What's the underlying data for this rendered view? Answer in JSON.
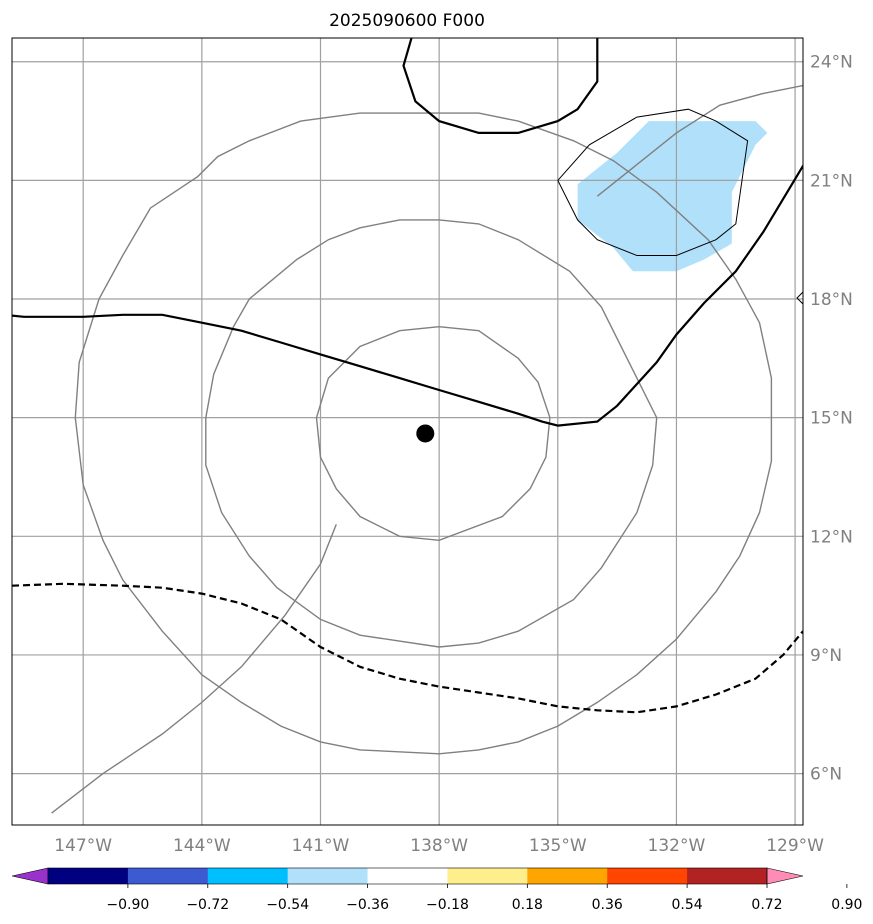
{
  "title": "2025090600 F000",
  "map": {
    "extent": {
      "lon_min": -148.8,
      "lon_max": -128.8,
      "lat_min": 4.7,
      "lat_max": 24.6
    },
    "gridlines": {
      "lon": [
        -147,
        -144,
        -141,
        -138,
        -135,
        -132,
        -129
      ],
      "lat": [
        6,
        9,
        12,
        15,
        18,
        21,
        24
      ],
      "color": "#a0a0a0"
    },
    "lon_labels": [
      "147°W",
      "144°W",
      "141°W",
      "138°W",
      "135°W",
      "132°W",
      "129°W"
    ],
    "lat_labels": [
      "6°N",
      "9°N",
      "12°N",
      "15°N",
      "18°N",
      "21°N",
      "24°N"
    ],
    "center_marker": {
      "lon": -138.35,
      "lat": 14.6,
      "color": "#000000"
    },
    "range_rings": {
      "color": "#808080",
      "rings": [
        [
          [
            -138,
            17.3
          ],
          [
            -137,
            17.2
          ],
          [
            -136,
            16.5
          ],
          [
            -135.5,
            15.9
          ],
          [
            -135.2,
            15
          ],
          [
            -135.3,
            14
          ],
          [
            -135.7,
            13.2
          ],
          [
            -136.4,
            12.5
          ],
          [
            -138,
            11.9
          ],
          [
            -139,
            12
          ],
          [
            -140,
            12.5
          ],
          [
            -140.6,
            13.2
          ],
          [
            -141,
            14
          ],
          [
            -141.1,
            15
          ],
          [
            -140.8,
            16
          ],
          [
            -140,
            16.8
          ],
          [
            -139,
            17.2
          ],
          [
            -138,
            17.3
          ]
        ],
        [
          [
            -138,
            20
          ],
          [
            -137,
            19.9
          ],
          [
            -136,
            19.5
          ],
          [
            -134.7,
            18.7
          ],
          [
            -133.9,
            17.8
          ],
          [
            -133.2,
            16.4
          ],
          [
            -132.5,
            15
          ],
          [
            -132.6,
            13.8
          ],
          [
            -133,
            12.6
          ],
          [
            -133.9,
            11.2
          ],
          [
            -134.6,
            10.4
          ],
          [
            -136,
            9.6
          ],
          [
            -137,
            9.3
          ],
          [
            -138,
            9.2
          ],
          [
            -140,
            9.5
          ],
          [
            -141,
            9.9
          ],
          [
            -142.1,
            10.7
          ],
          [
            -142.8,
            11.5
          ],
          [
            -143.5,
            12.6
          ],
          [
            -143.9,
            13.8
          ],
          [
            -143.9,
            15
          ],
          [
            -143.7,
            16.1
          ],
          [
            -143.2,
            17.3
          ],
          [
            -142.8,
            18
          ],
          [
            -141.6,
            19
          ],
          [
            -140.8,
            19.5
          ],
          [
            -140,
            19.8
          ],
          [
            -139,
            20
          ],
          [
            -138,
            20
          ]
        ],
        [
          [
            -138,
            22.7
          ],
          [
            -137,
            22.7
          ],
          [
            -136,
            22.5
          ],
          [
            -134.6,
            22
          ],
          [
            -133.6,
            21.5
          ],
          [
            -132.5,
            20.7
          ],
          [
            -131.2,
            19.5
          ],
          [
            -130.5,
            18.5
          ],
          [
            -129.9,
            17.4
          ],
          [
            -129.6,
            16
          ],
          [
            -129.6,
            13.9
          ],
          [
            -129.9,
            12.6
          ],
          [
            -130.4,
            11.5
          ],
          [
            -131,
            10.6
          ],
          [
            -132,
            9.4
          ],
          [
            -133,
            8.5
          ],
          [
            -134,
            7.8
          ],
          [
            -135,
            7.2
          ],
          [
            -136,
            6.8
          ],
          [
            -137,
            6.6
          ],
          [
            -138,
            6.5
          ],
          [
            -140,
            6.6
          ],
          [
            -141,
            6.8
          ],
          [
            -142,
            7.2
          ],
          [
            -143,
            7.8
          ],
          [
            -144,
            8.5
          ],
          [
            -145,
            9.6
          ],
          [
            -146,
            10.9
          ],
          [
            -146.5,
            11.9
          ],
          [
            -147,
            13.3
          ],
          [
            -147.2,
            15
          ],
          [
            -147.1,
            16.4
          ],
          [
            -146.6,
            18
          ],
          [
            -146,
            19.1
          ],
          [
            -145.3,
            20.3
          ],
          [
            -144.1,
            21.1
          ],
          [
            -143.6,
            21.6
          ],
          [
            -142.8,
            22
          ],
          [
            -141.5,
            22.5
          ],
          [
            -140,
            22.7
          ],
          [
            -139,
            22.7
          ],
          [
            -138,
            22.7
          ]
        ],
        [
          [
            -147.8,
            5
          ],
          [
            -146.5,
            6
          ],
          [
            -145,
            7
          ],
          [
            -144,
            7.8
          ],
          [
            -143,
            8.7
          ],
          [
            -141.9,
            10
          ],
          [
            -141,
            11.3
          ],
          [
            -140.6,
            12.3
          ]
        ],
        [
          [
            -128.8,
            23.4
          ],
          [
            -129.8,
            23.2
          ],
          [
            -130.9,
            22.9
          ],
          [
            -132,
            22.2
          ],
          [
            -133,
            21.4
          ],
          [
            -134,
            20.6
          ]
        ]
      ]
    },
    "contours": {
      "color": "#000000",
      "solid_main": [
        [
          -149,
          17.6
        ],
        [
          -148.5,
          17.55
        ],
        [
          -147,
          17.55
        ],
        [
          -146,
          17.6
        ],
        [
          -145,
          17.6
        ],
        [
          -144,
          17.4
        ],
        [
          -143,
          17.2
        ],
        [
          -142,
          16.9
        ],
        [
          -141,
          16.6
        ],
        [
          -140,
          16.3
        ],
        [
          -139,
          16
        ],
        [
          -138,
          15.7
        ],
        [
          -137,
          15.4
        ],
        [
          -136,
          15.1
        ],
        [
          -135.4,
          14.9
        ],
        [
          -135,
          14.8
        ],
        [
          -134,
          14.9
        ],
        [
          -133.5,
          15.3
        ],
        [
          -132.5,
          16.4
        ],
        [
          -132,
          17.1
        ],
        [
          -131.3,
          17.9
        ],
        [
          -130.5,
          18.7
        ],
        [
          -129.8,
          19.7
        ],
        [
          -129.2,
          20.7
        ],
        [
          -128.6,
          21.7
        ]
      ],
      "solid_north": [
        [
          -138.7,
          24.6
        ],
        [
          -138.9,
          23.9
        ],
        [
          -138.6,
          23
        ],
        [
          -138,
          22.5
        ],
        [
          -137,
          22.2
        ],
        [
          -136,
          22.2
        ],
        [
          -135,
          22.5
        ],
        [
          -134.5,
          22.8
        ],
        [
          -134,
          23.5
        ],
        [
          -134,
          24.6
        ]
      ],
      "dashed_south": [
        [
          -148.8,
          10.75
        ],
        [
          -147.5,
          10.8
        ],
        [
          -146,
          10.75
        ],
        [
          -145,
          10.7
        ],
        [
          -144,
          10.55
        ],
        [
          -143,
          10.3
        ],
        [
          -142,
          9.9
        ],
        [
          -141,
          9.2
        ],
        [
          -140,
          8.7
        ],
        [
          -139,
          8.4
        ],
        [
          -138,
          8.2
        ],
        [
          -137,
          8.05
        ],
        [
          -136,
          7.9
        ],
        [
          -135,
          7.7
        ],
        [
          -134,
          7.6
        ],
        [
          -133,
          7.55
        ],
        [
          -132,
          7.7
        ],
        [
          -131,
          8
        ],
        [
          -130,
          8.4
        ],
        [
          -129.3,
          9
        ],
        [
          -128.8,
          9.6
        ]
      ],
      "thin_closed": [
        [
          -135,
          21
        ],
        [
          -134.2,
          21.9
        ],
        [
          -133,
          22.6
        ],
        [
          -131.7,
          22.8
        ],
        [
          -131,
          22.5
        ],
        [
          -130.2,
          22
        ],
        [
          -130.5,
          19.9
        ],
        [
          -131,
          19.5
        ],
        [
          -132,
          19.1
        ],
        [
          -133,
          19.1
        ],
        [
          -134,
          19.5
        ],
        [
          -134.5,
          20
        ],
        [
          -135,
          21
        ]
      ]
    },
    "shading": {
      "color": "#b0e0fa",
      "polygon": [
        [
          -134.5,
          20.9
        ],
        [
          -133.5,
          21.7
        ],
        [
          -132.7,
          22.5
        ],
        [
          -131,
          22.5
        ],
        [
          -130,
          22.5
        ],
        [
          -129.7,
          22.2
        ],
        [
          -130,
          21.9
        ],
        [
          -130.2,
          21.5
        ],
        [
          -130.6,
          20.7
        ],
        [
          -130.6,
          19.4
        ],
        [
          -131.3,
          19
        ],
        [
          -132,
          18.7
        ],
        [
          -133.1,
          18.7
        ],
        [
          -133.6,
          19.3
        ],
        [
          -134.5,
          20
        ]
      ]
    }
  },
  "colorbar": {
    "colors": [
      "#9932cc",
      "#000080",
      "#3c5ad2",
      "#00bfff",
      "#b0e0fa",
      "#ffffff",
      "#ffee8c",
      "#ffa500",
      "#ff4500",
      "#b22222",
      "#ff8cb4"
    ],
    "labels": [
      "−0.90",
      "−0.72",
      "−0.54",
      "−0.36",
      "−0.18",
      "0.18",
      "0.36",
      "0.54",
      "0.72",
      "0.90"
    ]
  }
}
